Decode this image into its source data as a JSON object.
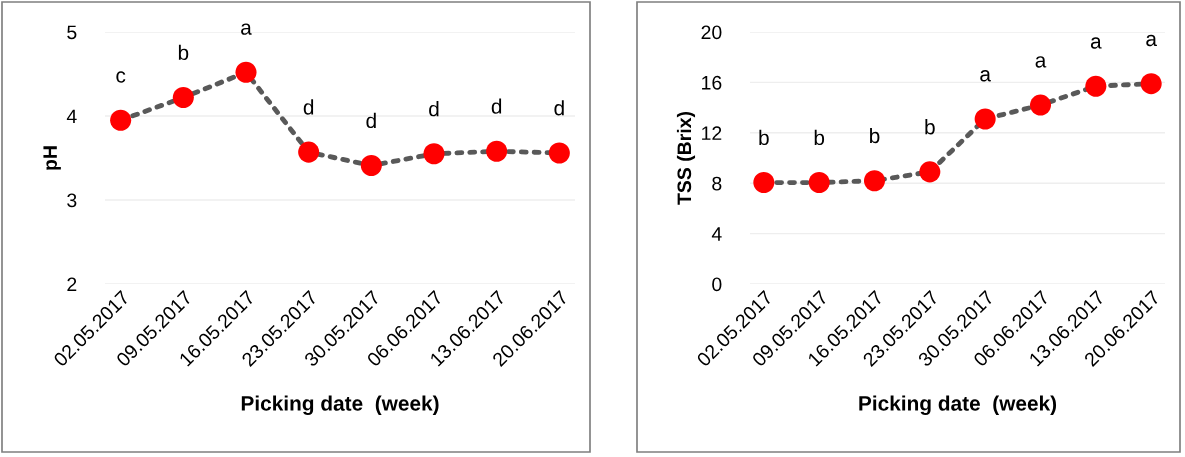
{
  "chart_data": [
    {
      "type": "line",
      "ylabel": "pH",
      "xlabel": "Picking date  (week)",
      "categories": [
        "02.05.2017",
        "09.05.2017",
        "16.05.2017",
        "23.05.2017",
        "30.05.2017",
        "06.06.2017",
        "13.06.2017",
        "20.06.2017"
      ],
      "series": [
        {
          "color": "#ff0000",
          "values": [
            3.95,
            4.22,
            4.52,
            3.57,
            3.41,
            3.55,
            3.58,
            3.56
          ]
        }
      ],
      "ylim": [
        2,
        5
      ],
      "yticks": [
        2,
        3,
        4,
        5
      ],
      "grid": "y",
      "marker": "circle",
      "line_style": "dotted",
      "legend": false,
      "annotations": [
        {
          "text": "c",
          "x": "02.05.2017",
          "y": 3.95
        },
        {
          "text": "b",
          "x": "09.05.2017",
          "y": 4.22
        },
        {
          "text": "a",
          "x": "16.05.2017",
          "y": 4.52
        },
        {
          "text": "d",
          "x": "23.05.2017",
          "y": 3.57
        },
        {
          "text": "d",
          "x": "30.05.2017",
          "y": 3.41
        },
        {
          "text": "d",
          "x": "06.06.2017",
          "y": 3.55
        },
        {
          "text": "d",
          "x": "13.06.2017",
          "y": 3.58
        },
        {
          "text": "d",
          "x": "20.06.2017",
          "y": 3.56
        }
      ]
    },
    {
      "type": "line",
      "ylabel": "TSS (Brix)",
      "xlabel": "Picking date  (week)",
      "categories": [
        "02.05.2017",
        "09.05.2017",
        "16.05.2017",
        "23.05.2017",
        "30.05.2017",
        "06.06.2017",
        "13.06.2017",
        "20.06.2017"
      ],
      "series": [
        {
          "color": "#ff0000",
          "values": [
            8.05,
            8.05,
            8.2,
            8.9,
            13.1,
            14.2,
            15.7,
            15.9
          ]
        }
      ],
      "ylim": [
        0,
        20
      ],
      "yticks": [
        0,
        4,
        8,
        12,
        16,
        20
      ],
      "grid": "y",
      "marker": "circle",
      "line_style": "dotted",
      "legend": false,
      "annotations": [
        {
          "text": "b",
          "x": "02.05.2017",
          "y": 8.05
        },
        {
          "text": "b",
          "x": "09.05.2017",
          "y": 8.05
        },
        {
          "text": "b",
          "x": "16.05.2017",
          "y": 8.2
        },
        {
          "text": "b",
          "x": "23.05.2017",
          "y": 8.9
        },
        {
          "text": "a",
          "x": "30.05.2017",
          "y": 13.1
        },
        {
          "text": "a",
          "x": "06.06.2017",
          "y": 14.2
        },
        {
          "text": "a",
          "x": "13.06.2017",
          "y": 15.7
        },
        {
          "text": "a",
          "x": "20.06.2017",
          "y": 15.9
        }
      ]
    }
  ]
}
